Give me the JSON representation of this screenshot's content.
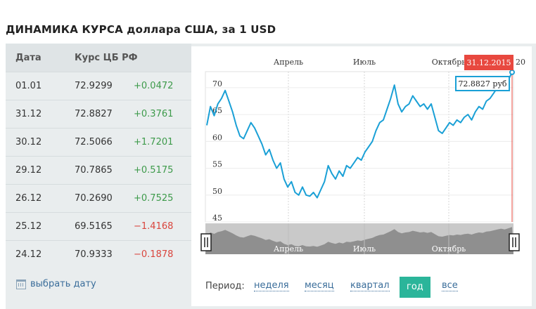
{
  "title": "ДИНАМИКА КУРСА доллара США, за 1 USD",
  "table": {
    "header": {
      "date": "Дата",
      "rate": "Курс ЦБ РФ"
    },
    "rows": [
      {
        "date": "01.01",
        "rate": "72.9299",
        "change": "+0.0472",
        "dir": "up"
      },
      {
        "date": "31.12",
        "rate": "72.8827",
        "change": "+0.3761",
        "dir": "up"
      },
      {
        "date": "30.12",
        "rate": "72.5066",
        "change": "+1.7201",
        "dir": "up"
      },
      {
        "date": "29.12",
        "rate": "70.7865",
        "change": "+0.5175",
        "dir": "up"
      },
      {
        "date": "26.12",
        "rate": "70.2690",
        "change": "+0.7525",
        "dir": "up"
      },
      {
        "date": "25.12",
        "rate": "69.5165",
        "change": "−1.4168",
        "dir": "down"
      },
      {
        "date": "24.12",
        "rate": "70.9333",
        "change": "−0.1878",
        "dir": "down"
      }
    ],
    "calendar_link": "выбрать дату"
  },
  "chart_data": {
    "type": "line",
    "xlabel": "",
    "ylabel": "",
    "ylim": [
      45,
      73
    ],
    "yticks": [
      70,
      65,
      60,
      55,
      50,
      45
    ],
    "month_labels": [
      "Апрель",
      "Июль",
      "Октябрь"
    ],
    "month_label_cut": "20",
    "grid": true,
    "series": [
      {
        "values": [
          63.0,
          66.5,
          64.8,
          67.0,
          68.0,
          69.5,
          67.5,
          65.5,
          63.0,
          61.0,
          60.5,
          62.0,
          63.5,
          62.5,
          61.0,
          59.5,
          57.5,
          58.5,
          56.5,
          55.0,
          56.0,
          53.0,
          51.5,
          52.5,
          50.5,
          50.0,
          51.5,
          50.0,
          49.8,
          50.5,
          49.5,
          51.0,
          52.5,
          55.5,
          54.0,
          53.0,
          54.5,
          53.5,
          55.5,
          55.0,
          56.0,
          57.0,
          56.5,
          58.0,
          59.0,
          60.0,
          62.0,
          63.5,
          64.0,
          66.0,
          68.0,
          70.5,
          67.0,
          65.5,
          66.5,
          67.0,
          68.5,
          67.5,
          66.5,
          67.0,
          66.0,
          67.0,
          64.5,
          62.0,
          61.5,
          62.5,
          63.5,
          63.0,
          64.0,
          63.5,
          64.5,
          65.0,
          64.0,
          65.5,
          66.5,
          66.0,
          67.5,
          68.0,
          69.0,
          70.0,
          71.0,
          70.0,
          71.5,
          72.88
        ],
        "color": "#1aa0d6"
      }
    ],
    "marker": {
      "date": "31.12.2015",
      "value": "72.8827 руб"
    },
    "accent": "#e8483f"
  },
  "periods": {
    "label": "Период:",
    "options": [
      "неделя",
      "месяц",
      "квартал",
      "год",
      "все"
    ],
    "active": "год"
  }
}
